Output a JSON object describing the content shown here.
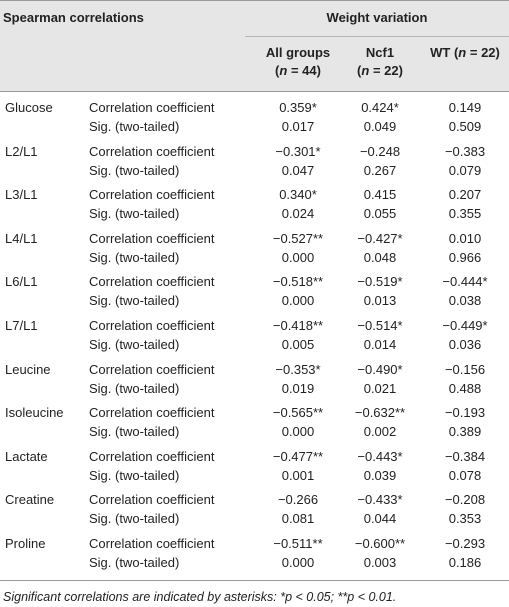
{
  "header": {
    "corner_label": "Spearman correlations",
    "group_label": "Weight variation",
    "columns": [
      {
        "name": "All groups",
        "n": "(n = 44)"
      },
      {
        "name": "Ncf1",
        "n": "(n = 22)"
      },
      {
        "name": "WT (n = 22)",
        "n": ""
      }
    ]
  },
  "stat_labels": {
    "coef": "Correlation coefficient",
    "sig": "Sig. (two-tailed)"
  },
  "rows": [
    {
      "variable": "Glucose",
      "coef": [
        "0.359*",
        "0.424*",
        "0.149"
      ],
      "sig": [
        "0.017",
        "0.049",
        "0.509"
      ]
    },
    {
      "variable": "L2/L1",
      "coef": [
        "−0.301*",
        "−0.248",
        "−0.383"
      ],
      "sig": [
        "0.047",
        "0.267",
        "0.079"
      ]
    },
    {
      "variable": "L3/L1",
      "coef": [
        "0.340*",
        "0.415",
        "0.207"
      ],
      "sig": [
        "0.024",
        "0.055",
        "0.355"
      ]
    },
    {
      "variable": "L4/L1",
      "coef": [
        "−0.527**",
        "−0.427*",
        "0.010"
      ],
      "sig": [
        "0.000",
        "0.048",
        "0.966"
      ]
    },
    {
      "variable": "L6/L1",
      "coef": [
        "−0.518**",
        "−0.519*",
        "−0.444*"
      ],
      "sig": [
        "0.000",
        "0.013",
        "0.038"
      ]
    },
    {
      "variable": "L7/L1",
      "coef": [
        "−0.418**",
        "−0.514*",
        "−0.449*"
      ],
      "sig": [
        "0.005",
        "0.014",
        "0.036"
      ]
    },
    {
      "variable": "Leucine",
      "coef": [
        "−0.353*",
        "−0.490*",
        "−0.156"
      ],
      "sig": [
        "0.019",
        "0.021",
        "0.488"
      ]
    },
    {
      "variable": "Isoleucine",
      "coef": [
        "−0.565**",
        "−0.632**",
        "−0.193"
      ],
      "sig": [
        "0.000",
        "0.002",
        "0.389"
      ]
    },
    {
      "variable": "Lactate",
      "coef": [
        "−0.477**",
        "−0.443*",
        "−0.384"
      ],
      "sig": [
        "0.001",
        "0.039",
        "0.078"
      ]
    },
    {
      "variable": "Creatine",
      "coef": [
        "−0.266",
        "−0.433*",
        "−0.208"
      ],
      "sig": [
        "0.081",
        "0.044",
        "0.353"
      ]
    },
    {
      "variable": "Proline",
      "coef": [
        "−0.511**",
        "−0.600**",
        "−0.293"
      ],
      "sig": [
        "0.000",
        "0.003",
        "0.186"
      ]
    }
  ],
  "footnote": "Significant correlations are indicated by asterisks: *p < 0.05; **p < 0.01."
}
